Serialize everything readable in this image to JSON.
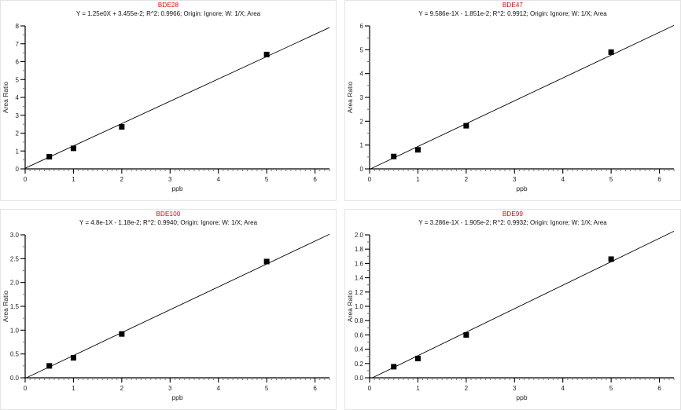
{
  "page": {
    "title_color": "#e60000",
    "axis_color": "#000000",
    "minor_tick_color": "#777777",
    "panel_border_color": "#e4e4e4"
  },
  "chart_data": [
    {
      "type": "scatter",
      "title": "BDE28",
      "subtitle": "Y = 1.25e0X + 3.455e-2; R^2: 0.9966; Origin: Ignore; W: 1/X; Area",
      "xlabel": "ppb",
      "ylabel": "Area Ratio",
      "xlim": [
        0,
        6.3
      ],
      "ylim": [
        0,
        8
      ],
      "x_major_step": 1,
      "x_minor_step": 0.1,
      "y_major_step": 1,
      "y_minor_step": 0.5,
      "y_label_decimals": 0,
      "fit": {
        "slope": 1.25,
        "intercept": 0.03455,
        "r2": 0.9966,
        "origin": "Ignore",
        "weighting": "1/X",
        "response": "Area"
      },
      "points": [
        {
          "x": 0.5,
          "y": 0.68
        },
        {
          "x": 1,
          "y": 1.15
        },
        {
          "x": 2,
          "y": 2.35
        },
        {
          "x": 5,
          "y": 6.4
        }
      ]
    },
    {
      "type": "scatter",
      "title": "BDE47",
      "subtitle": "Y = 9.586e-1X - 1.851e-2; R^2: 0.9912; Origin: Ignore; W: 1/X; Area",
      "xlabel": "ppb",
      "ylabel": "Area Ratio",
      "xlim": [
        0,
        6.3
      ],
      "ylim": [
        0,
        6
      ],
      "x_major_step": 1,
      "x_minor_step": 0.1,
      "y_major_step": 1,
      "y_minor_step": 0.5,
      "y_label_decimals": 0,
      "fit": {
        "slope": 0.9586,
        "intercept": -0.01851,
        "r2": 0.9912,
        "origin": "Ignore",
        "weighting": "1/X",
        "response": "Area"
      },
      "points": [
        {
          "x": 0.5,
          "y": 0.52
        },
        {
          "x": 1,
          "y": 0.8
        },
        {
          "x": 2,
          "y": 1.81
        },
        {
          "x": 5,
          "y": 4.9
        }
      ]
    },
    {
      "type": "scatter",
      "title": "BDE100",
      "subtitle": "Y = 4.8e-1X - 1.18e-2; R^2: 0.9940; Origin: Ignore; W: 1/X; Area",
      "xlabel": "ppb",
      "ylabel": "Area Ratio",
      "xlim": [
        0,
        6.3
      ],
      "ylim": [
        0,
        3
      ],
      "x_major_step": 1,
      "x_minor_step": 0.1,
      "y_major_step": 0.5,
      "y_minor_step": 0.25,
      "y_label_decimals": 1,
      "fit": {
        "slope": 0.48,
        "intercept": -0.0118,
        "r2": 0.994,
        "origin": "Ignore",
        "weighting": "1/X",
        "response": "Area"
      },
      "points": [
        {
          "x": 0.5,
          "y": 0.25
        },
        {
          "x": 1,
          "y": 0.42
        },
        {
          "x": 2,
          "y": 0.92
        },
        {
          "x": 5,
          "y": 2.44
        }
      ]
    },
    {
      "type": "scatter",
      "title": "BDE99",
      "subtitle": "Y = 3.286e-1X - 1.905e-2; R^2: 0.9932; Origin: Ignore; W: 1/X; Area",
      "xlabel": "ppb",
      "ylabel": "Area Ratio",
      "xlim": [
        0,
        6.3
      ],
      "ylim": [
        0,
        2
      ],
      "x_major_step": 1,
      "x_minor_step": 0.1,
      "y_major_step": 0.2,
      "y_minor_step": 0.1,
      "y_label_decimals": 1,
      "fit": {
        "slope": 0.3286,
        "intercept": -0.01905,
        "r2": 0.9932,
        "origin": "Ignore",
        "weighting": "1/X",
        "response": "Area"
      },
      "points": [
        {
          "x": 0.5,
          "y": 0.155
        },
        {
          "x": 1,
          "y": 0.27
        },
        {
          "x": 2,
          "y": 0.6
        },
        {
          "x": 5,
          "y": 1.66
        }
      ]
    }
  ]
}
